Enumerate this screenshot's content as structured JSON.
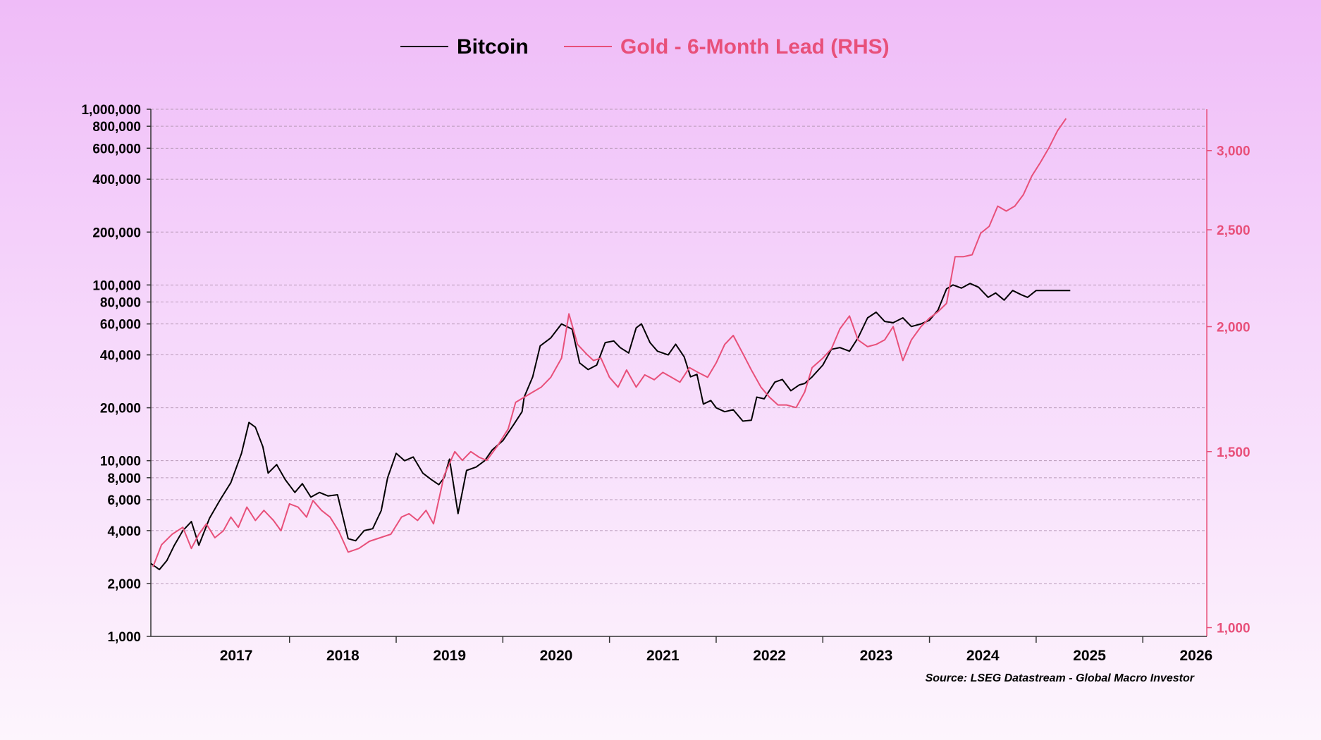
{
  "colors": {
    "bitcoin": "#000000",
    "gold": "#e8507a",
    "grid": "#b89ab8",
    "axis": "#333333"
  },
  "source": "Source: LSEG Datastream - Global Macro Investor",
  "chart_data": {
    "type": "line",
    "legend": {
      "position": "top-center",
      "entries": [
        "Bitcoin",
        "Gold - 6-Month Lead (RHS)"
      ]
    },
    "grid": true,
    "x_axis": {
      "labels": [
        "2017",
        "2018",
        "2019",
        "2020",
        "2021",
        "2022",
        "2023",
        "2024",
        "2025",
        "2026"
      ],
      "range": [
        2016.7,
        2026.6
      ]
    },
    "y_left": {
      "scale": "log",
      "range": [
        1000,
        1000000
      ],
      "ticks": [
        {
          "v": 1000,
          "label": "1,000"
        },
        {
          "v": 2000,
          "label": "2,000"
        },
        {
          "v": 4000,
          "label": "4,000"
        },
        {
          "v": 6000,
          "label": "6,000"
        },
        {
          "v": 8000,
          "label": "8,000"
        },
        {
          "v": 10000,
          "label": "10,000"
        },
        {
          "v": 20000,
          "label": "20,000"
        },
        {
          "v": 40000,
          "label": "40,000"
        },
        {
          "v": 60000,
          "label": "60,000"
        },
        {
          "v": 80000,
          "label": "80,000"
        },
        {
          "v": 100000,
          "label": "100,000"
        },
        {
          "v": 200000,
          "label": "200,000"
        },
        {
          "v": 400000,
          "label": "400,000"
        },
        {
          "v": 600000,
          "label": "600,000"
        },
        {
          "v": 800000,
          "label": "800,000"
        },
        {
          "v": 1000000,
          "label": "1,000,000"
        }
      ]
    },
    "y_right": {
      "scale": "log",
      "range": [
        980,
        3300
      ],
      "ticks": [
        {
          "v": 1000,
          "label": "1,000"
        },
        {
          "v": 1500,
          "label": "1,500"
        },
        {
          "v": 2000,
          "label": "2,000"
        },
        {
          "v": 2500,
          "label": "2,500"
        },
        {
          "v": 3000,
          "label": "3,000"
        }
      ]
    },
    "series": [
      {
        "name": "Bitcoin",
        "axis": "left",
        "x": [
          2016.7,
          2016.78,
          2016.85,
          2016.92,
          2017.0,
          2017.08,
          2017.15,
          2017.25,
          2017.35,
          2017.45,
          2017.55,
          2017.62,
          2017.68,
          2017.75,
          2017.8,
          2017.88,
          2017.96,
          2018.05,
          2018.12,
          2018.2,
          2018.28,
          2018.36,
          2018.45,
          2018.55,
          2018.62,
          2018.7,
          2018.78,
          2018.86,
          2018.92,
          2019.0,
          2019.08,
          2019.16,
          2019.25,
          2019.33,
          2019.4,
          2019.45,
          2019.5,
          2019.58,
          2019.66,
          2019.75,
          2019.83,
          2019.9,
          2020.0,
          2020.1,
          2020.18,
          2020.2,
          2020.28,
          2020.35,
          2020.45,
          2020.55,
          2020.65,
          2020.72,
          2020.8,
          2020.88,
          2020.96,
          2021.04,
          2021.1,
          2021.18,
          2021.25,
          2021.3,
          2021.38,
          2021.45,
          2021.55,
          2021.62,
          2021.7,
          2021.76,
          2021.82,
          2021.88,
          2021.95,
          2022.0,
          2022.08,
          2022.16,
          2022.25,
          2022.33,
          2022.38,
          2022.45,
          2022.55,
          2022.62,
          2022.7,
          2022.78,
          2022.83,
          2022.9,
          2023.0,
          2023.08,
          2023.16,
          2023.25,
          2023.33,
          2023.42,
          2023.5,
          2023.58,
          2023.66,
          2023.75,
          2023.83,
          2023.92,
          2024.0,
          2024.08,
          2024.16,
          2024.22,
          2024.3,
          2024.38,
          2024.46,
          2024.55,
          2024.62,
          2024.7,
          2024.78,
          2024.86,
          2024.92,
          2025.0,
          2025.05,
          2025.1,
          2025.15,
          2025.2,
          2025.25,
          2025.32
        ],
        "values": [
          2600,
          2400,
          2700,
          3300,
          4000,
          4500,
          3300,
          4700,
          6000,
          7500,
          11000,
          16500,
          15500,
          12000,
          8500,
          9500,
          7800,
          6600,
          7400,
          6200,
          6600,
          6300,
          6400,
          3600,
          3500,
          4000,
          4100,
          5200,
          8000,
          11000,
          10000,
          10500,
          8500,
          7800,
          7300,
          8000,
          10200,
          5000,
          8800,
          9200,
          10000,
          11500,
          13000,
          16000,
          19000,
          23000,
          30000,
          45000,
          50000,
          60000,
          56000,
          36000,
          33000,
          35000,
          47000,
          48000,
          44000,
          41000,
          57000,
          60000,
          47000,
          42000,
          40000,
          46000,
          39000,
          30000,
          31000,
          21000,
          22000,
          20000,
          19000,
          19500,
          16800,
          17000,
          23000,
          22500,
          28000,
          29000,
          25000,
          27000,
          27500,
          30000,
          35000,
          43000,
          44000,
          42000,
          50000,
          65000,
          70000,
          62000,
          61000,
          65000,
          58000,
          60000,
          63000,
          72000,
          95000,
          100000,
          96000,
          102000,
          97000,
          85000,
          90000,
          82000,
          93000,
          88000,
          85000,
          93000,
          93000,
          93000,
          93000,
          93000,
          93000,
          93000
        ]
      },
      {
        "name": "Gold - 6-Month Lead (RHS)",
        "axis": "right",
        "x": [
          2016.72,
          2016.8,
          2016.9,
          2017.0,
          2017.08,
          2017.15,
          2017.22,
          2017.3,
          2017.38,
          2017.45,
          2017.52,
          2017.6,
          2017.68,
          2017.76,
          2017.85,
          2017.92,
          2018.0,
          2018.08,
          2018.16,
          2018.22,
          2018.3,
          2018.38,
          2018.46,
          2018.55,
          2018.65,
          2018.75,
          2018.85,
          2018.95,
          2019.05,
          2019.12,
          2019.2,
          2019.28,
          2019.35,
          2019.45,
          2019.55,
          2019.62,
          2019.7,
          2019.78,
          2019.85,
          2019.95,
          2020.05,
          2020.12,
          2020.2,
          2020.28,
          2020.36,
          2020.45,
          2020.55,
          2020.62,
          2020.7,
          2020.78,
          2020.85,
          2020.92,
          2021.0,
          2021.08,
          2021.16,
          2021.25,
          2021.33,
          2021.42,
          2021.5,
          2021.58,
          2021.66,
          2021.75,
          2021.83,
          2021.92,
          2022.0,
          2022.08,
          2022.16,
          2022.25,
          2022.33,
          2022.42,
          2022.5,
          2022.58,
          2022.66,
          2022.75,
          2022.83,
          2022.9,
          2023.0,
          2023.08,
          2023.16,
          2023.25,
          2023.33,
          2023.42,
          2023.5,
          2023.58,
          2023.66,
          2023.75,
          2023.83,
          2023.92,
          2024.0,
          2024.08,
          2024.16,
          2024.24,
          2024.32,
          2024.4,
          2024.48,
          2024.56,
          2024.64,
          2024.72,
          2024.8,
          2024.88,
          2024.96,
          2025.04,
          2025.12,
          2025.2,
          2025.28
        ],
        "values": [
          1150,
          1210,
          1240,
          1260,
          1200,
          1240,
          1270,
          1230,
          1250,
          1290,
          1260,
          1320,
          1280,
          1310,
          1280,
          1250,
          1330,
          1320,
          1290,
          1340,
          1310,
          1290,
          1250,
          1190,
          1200,
          1220,
          1230,
          1240,
          1290,
          1300,
          1280,
          1310,
          1270,
          1420,
          1500,
          1470,
          1500,
          1480,
          1470,
          1520,
          1580,
          1680,
          1700,
          1720,
          1740,
          1780,
          1860,
          2060,
          1920,
          1880,
          1850,
          1860,
          1780,
          1740,
          1810,
          1740,
          1790,
          1770,
          1800,
          1780,
          1760,
          1820,
          1800,
          1780,
          1840,
          1920,
          1960,
          1880,
          1810,
          1740,
          1700,
          1670,
          1670,
          1660,
          1720,
          1820,
          1860,
          1900,
          1990,
          2050,
          1940,
          1910,
          1920,
          1940,
          2000,
          1850,
          1940,
          2000,
          2040,
          2070,
          2110,
          2350,
          2350,
          2360,
          2480,
          2520,
          2640,
          2610,
          2640,
          2710,
          2830,
          2920,
          3020,
          3140,
          3230
        ]
      }
    ]
  }
}
